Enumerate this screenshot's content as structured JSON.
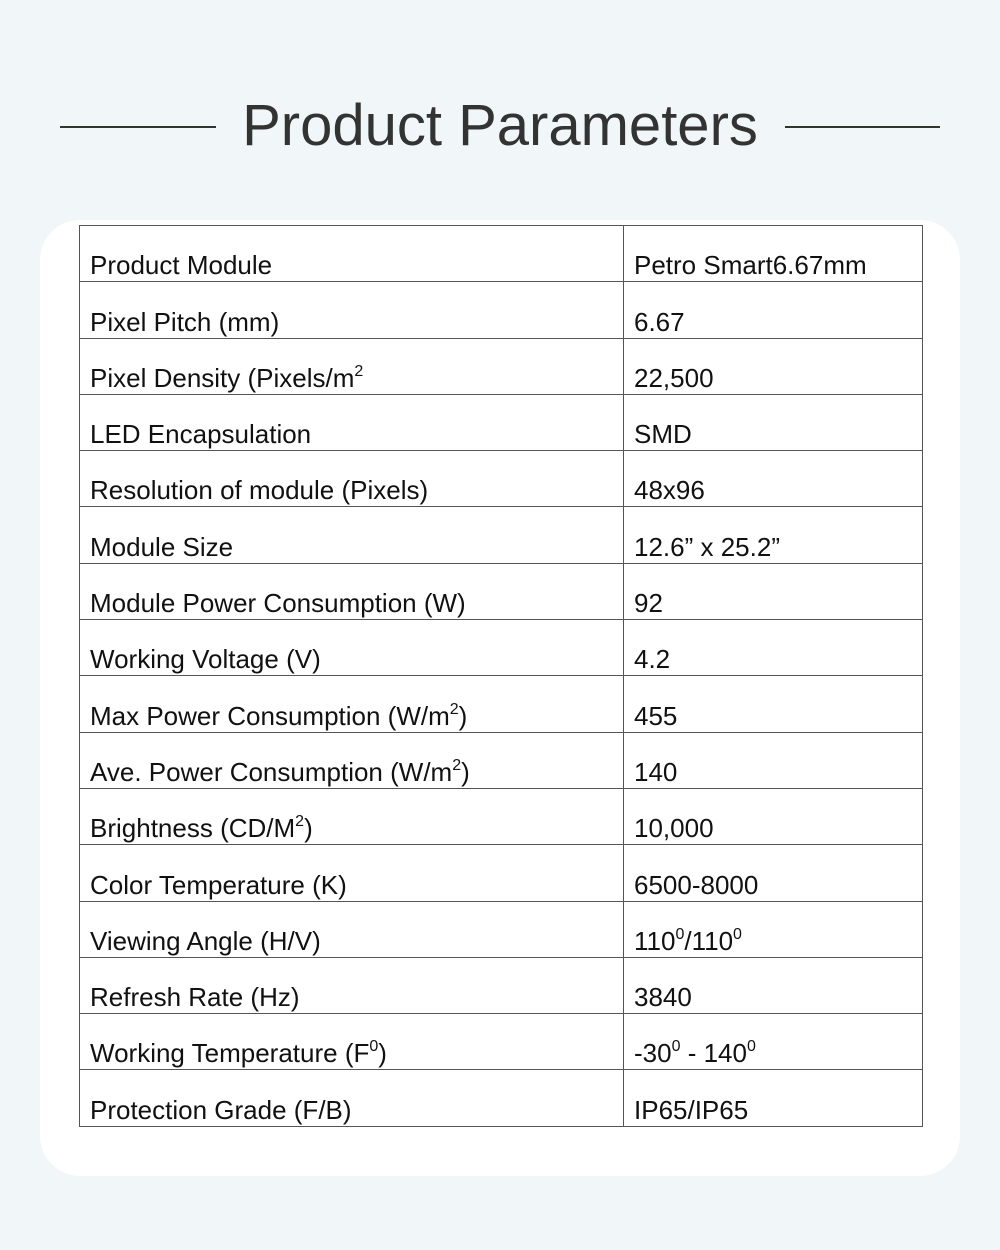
{
  "title": "Product Parameters",
  "rows": [
    {
      "label": [
        {
          "t": "Product Module"
        }
      ],
      "value": [
        {
          "t": "Petro Smart6.67mm"
        }
      ]
    },
    {
      "label": [
        {
          "t": "Pixel Pitch (mm)"
        }
      ],
      "value": [
        {
          "t": "6.67"
        }
      ]
    },
    {
      "label": [
        {
          "t": "Pixel Density (Pixels/m"
        },
        {
          "t": "2",
          "sup": true
        }
      ],
      "value": [
        {
          "t": "22,500"
        }
      ]
    },
    {
      "label": [
        {
          "t": "LED Encapsulation"
        }
      ],
      "value": [
        {
          "t": "SMD"
        }
      ]
    },
    {
      "label": [
        {
          "t": "Resolution of module (Pixels)"
        }
      ],
      "value": [
        {
          "t": "48x96"
        }
      ]
    },
    {
      "label": [
        {
          "t": "Module Size"
        }
      ],
      "value": [
        {
          "t": "12.6” x 25.2”"
        }
      ]
    },
    {
      "label": [
        {
          "t": "Module Power Consumption (W)"
        }
      ],
      "value": [
        {
          "t": "92"
        }
      ]
    },
    {
      "label": [
        {
          "t": "Working Voltage (V)"
        }
      ],
      "value": [
        {
          "t": "4.2"
        }
      ]
    },
    {
      "label": [
        {
          "t": "Max Power Consumption (W/m"
        },
        {
          "t": "2",
          "sup": true
        },
        {
          "t": ")"
        }
      ],
      "value": [
        {
          "t": "455"
        }
      ]
    },
    {
      "label": [
        {
          "t": "Ave. Power Consumption (W/m"
        },
        {
          "t": "2",
          "sup": true
        },
        {
          "t": ")"
        }
      ],
      "value": [
        {
          "t": "140"
        }
      ]
    },
    {
      "label": [
        {
          "t": "Brightness (CD/M"
        },
        {
          "t": "2",
          "sup": true
        },
        {
          "t": ")"
        }
      ],
      "value": [
        {
          "t": "10,000"
        }
      ]
    },
    {
      "label": [
        {
          "t": "Color Temperature (K)"
        }
      ],
      "value": [
        {
          "t": "6500-8000"
        }
      ]
    },
    {
      "label": [
        {
          "t": "Viewing Angle (H/V)"
        }
      ],
      "value": [
        {
          "t": "110"
        },
        {
          "t": "0",
          "sup": true
        },
        {
          "t": "/110"
        },
        {
          "t": "0",
          "sup": true
        }
      ]
    },
    {
      "label": [
        {
          "t": "Refresh Rate (Hz)"
        }
      ],
      "value": [
        {
          "t": "3840"
        }
      ]
    },
    {
      "label": [
        {
          "t": "Working Temperature (F"
        },
        {
          "t": "0",
          "sup": true
        },
        {
          "t": ")"
        }
      ],
      "value": [
        {
          "t": "-30"
        },
        {
          "t": "0",
          "sup": true
        },
        {
          "t": " - 140"
        },
        {
          "t": "0",
          "sup": true
        }
      ]
    },
    {
      "label": [
        {
          "t": "Protection Grade (F/B)"
        }
      ],
      "value": [
        {
          "t": "IP65/IP65"
        }
      ]
    }
  ]
}
